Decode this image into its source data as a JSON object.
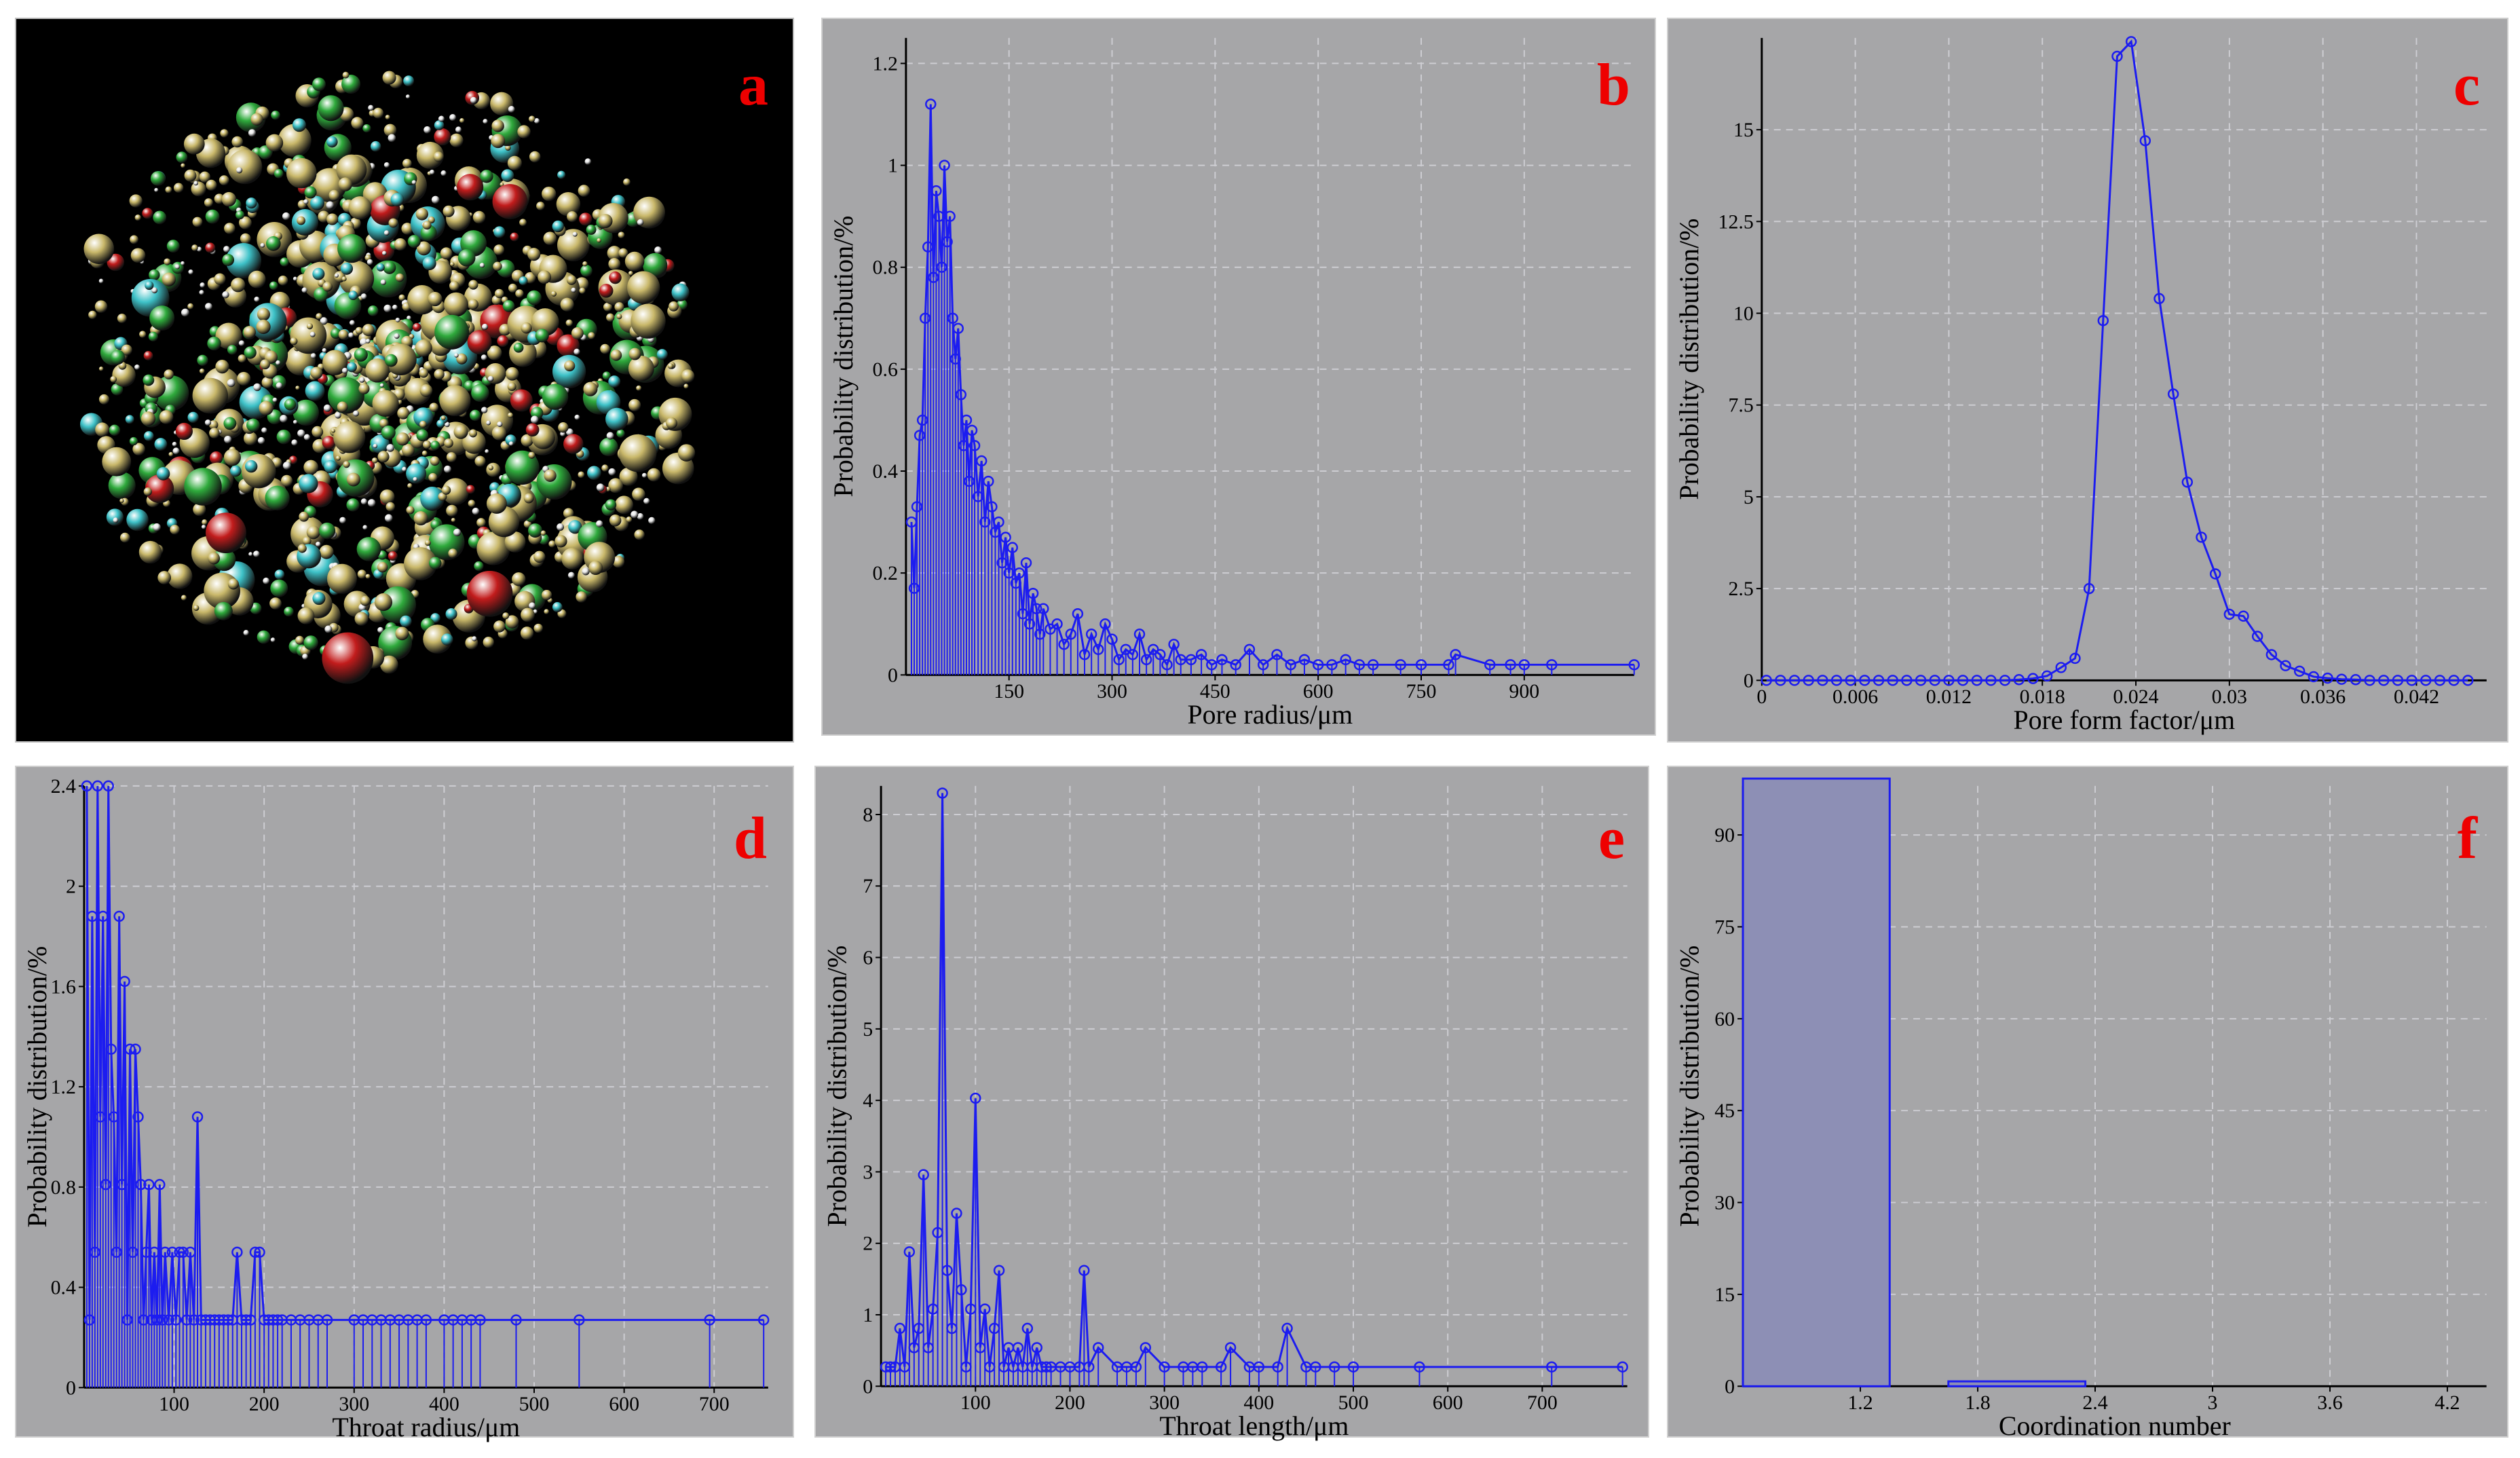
{
  "colors": {
    "line": "#1c1cf0",
    "panel_bg": "#a6a6a8",
    "grid": "#cdcdd2",
    "letter": "#ee0000",
    "bar_fill": "#8d8fb5"
  },
  "panels": {
    "a": {
      "letter": "a",
      "description_colors": [
        "#c9b86a",
        "#2faa3c",
        "#3ec2c8",
        "#c21c1c",
        "#e8e8e8"
      ]
    },
    "b": {
      "letter": "b"
    },
    "c": {
      "letter": "c"
    },
    "d": {
      "letter": "d"
    },
    "e": {
      "letter": "e"
    },
    "f": {
      "letter": "f"
    }
  },
  "chart_data": [
    {
      "id": "b",
      "type": "line",
      "xlabel": "Pore radius/μm",
      "ylabel": "Probability distribution/%",
      "xlim": [
        0,
        1060
      ],
      "ylim": [
        0,
        1.25
      ],
      "xticks": [
        150,
        300,
        450,
        600,
        750,
        900
      ],
      "yticks": [
        0,
        0.2,
        0.4,
        0.6,
        0.8,
        1,
        1.2
      ],
      "ytick_labels": [
        "0",
        "0.2",
        "0.4",
        "0.6",
        "0.8",
        "1",
        "1.2"
      ],
      "x": [
        8,
        12,
        16,
        20,
        24,
        28,
        32,
        36,
        40,
        44,
        48,
        52,
        56,
        60,
        64,
        68,
        72,
        76,
        80,
        84,
        88,
        92,
        96,
        100,
        105,
        110,
        115,
        120,
        125,
        130,
        135,
        140,
        145,
        150,
        155,
        160,
        165,
        170,
        175,
        180,
        185,
        190,
        195,
        200,
        210,
        220,
        230,
        240,
        250,
        260,
        270,
        280,
        290,
        300,
        310,
        320,
        330,
        340,
        350,
        360,
        370,
        380,
        390,
        400,
        415,
        430,
        445,
        460,
        480,
        500,
        520,
        540,
        560,
        580,
        600,
        620,
        640,
        660,
        680,
        720,
        750,
        790,
        800,
        850,
        880,
        900,
        940,
        1060
      ],
      "y": [
        0.3,
        0.17,
        0.33,
        0.47,
        0.5,
        0.7,
        0.84,
        1.12,
        0.78,
        0.95,
        0.9,
        0.8,
        1.0,
        0.85,
        0.9,
        0.7,
        0.62,
        0.68,
        0.55,
        0.45,
        0.5,
        0.38,
        0.48,
        0.45,
        0.35,
        0.42,
        0.3,
        0.38,
        0.33,
        0.28,
        0.3,
        0.22,
        0.27,
        0.2,
        0.25,
        0.18,
        0.2,
        0.12,
        0.22,
        0.1,
        0.16,
        0.13,
        0.08,
        0.13,
        0.09,
        0.1,
        0.06,
        0.08,
        0.12,
        0.04,
        0.08,
        0.05,
        0.1,
        0.07,
        0.03,
        0.05,
        0.04,
        0.08,
        0.03,
        0.05,
        0.04,
        0.02,
        0.06,
        0.03,
        0.03,
        0.04,
        0.02,
        0.03,
        0.02,
        0.05,
        0.02,
        0.04,
        0.02,
        0.03,
        0.02,
        0.02,
        0.03,
        0.02,
        0.02,
        0.02,
        0.02,
        0.02,
        0.04,
        0.02,
        0.02,
        0.02,
        0.02,
        0.02
      ]
    },
    {
      "id": "c",
      "type": "line",
      "xlabel": "Pore form factor/μm",
      "ylabel": "Probability distribution/%",
      "xlim": [
        0,
        0.0465
      ],
      "ylim": [
        0,
        17.5
      ],
      "xticks": [
        0,
        0.006,
        0.012,
        0.018,
        0.024,
        0.03,
        0.036,
        0.042
      ],
      "xtick_labels": [
        "0",
        "0.006",
        "0.012",
        "0.018",
        "0.024",
        "0.03",
        "0.036",
        "0.042"
      ],
      "yticks": [
        0,
        2.5,
        5,
        7.5,
        10,
        12.5,
        15
      ],
      "ytick_labels": [
        "0",
        "2.5",
        "5",
        "7.5",
        "10",
        "12.5",
        "15"
      ],
      "x": [
        0.0003,
        0.0012,
        0.0021,
        0.003,
        0.0039,
        0.0048,
        0.0057,
        0.0066,
        0.0075,
        0.0084,
        0.0093,
        0.0102,
        0.0111,
        0.012,
        0.0129,
        0.0138,
        0.0147,
        0.0156,
        0.0165,
        0.0174,
        0.0183,
        0.0192,
        0.0201,
        0.021,
        0.0219,
        0.0228,
        0.0237,
        0.0246,
        0.0255,
        0.0264,
        0.0273,
        0.0282,
        0.0291,
        0.03,
        0.0309,
        0.0318,
        0.0327,
        0.0336,
        0.0345,
        0.0354,
        0.0363,
        0.0372,
        0.0381,
        0.039,
        0.0399,
        0.0408,
        0.0417,
        0.0426,
        0.0435,
        0.0444,
        0.0453
      ],
      "y": [
        0,
        0,
        0,
        0,
        0,
        0,
        0,
        0,
        0,
        0,
        0,
        0,
        0,
        0,
        0,
        0,
        0,
        0,
        0.02,
        0.05,
        0.12,
        0.35,
        0.6,
        2.5,
        9.8,
        17,
        17.4,
        14.7,
        10.4,
        7.8,
        5.4,
        3.9,
        2.9,
        1.8,
        1.75,
        1.2,
        0.7,
        0.4,
        0.25,
        0.1,
        0.06,
        0.03,
        0.02,
        0,
        0,
        0,
        0,
        0,
        0,
        0,
        0
      ]
    },
    {
      "id": "d",
      "type": "line",
      "xlabel": "Throat radius/μm",
      "ylabel": "Probability distribution/%",
      "xlim": [
        0,
        760
      ],
      "ylim": [
        0,
        2.4
      ],
      "xticks": [
        100,
        200,
        300,
        400,
        500,
        600,
        700
      ],
      "yticks": [
        0,
        0.4,
        0.8,
        1.2,
        1.6,
        2,
        2.4
      ],
      "ytick_labels": [
        "0",
        "0.4",
        "0.8",
        "1.2",
        "1.6",
        "2",
        "2.4"
      ],
      "x": [
        3,
        6,
        9,
        12,
        15,
        18,
        21,
        24,
        27,
        30,
        33,
        36,
        39,
        42,
        45,
        48,
        51,
        54,
        57,
        60,
        63,
        66,
        69,
        72,
        75,
        78,
        81,
        84,
        87,
        90,
        94,
        98,
        102,
        106,
        110,
        114,
        118,
        122,
        126,
        130,
        135,
        140,
        145,
        150,
        155,
        160,
        165,
        170,
        175,
        180,
        185,
        190,
        195,
        200,
        205,
        210,
        215,
        220,
        230,
        240,
        250,
        260,
        270,
        300,
        310,
        320,
        330,
        340,
        350,
        360,
        370,
        380,
        400,
        410,
        420,
        430,
        440,
        480,
        550,
        695,
        755
      ],
      "y": [
        2.4,
        0.27,
        1.88,
        0.54,
        2.4,
        1.08,
        1.88,
        0.81,
        2.4,
        1.35,
        1.08,
        0.54,
        1.88,
        0.81,
        1.62,
        0.27,
        1.35,
        0.54,
        1.35,
        1.08,
        0.81,
        0.27,
        0.54,
        0.81,
        0.27,
        0.54,
        0.27,
        0.81,
        0.27,
        0.54,
        0.27,
        0.54,
        0.27,
        0.54,
        0.54,
        0.27,
        0.54,
        0.27,
        1.08,
        0.27,
        0.27,
        0.27,
        0.27,
        0.27,
        0.27,
        0.27,
        0.27,
        0.54,
        0.27,
        0.27,
        0.27,
        0.54,
        0.54,
        0.27,
        0.27,
        0.27,
        0.27,
        0.27,
        0.27,
        0.27,
        0.27,
        0.27,
        0.27,
        0.27,
        0.27,
        0.27,
        0.27,
        0.27,
        0.27,
        0.27,
        0.27,
        0.27,
        0.27,
        0.27,
        0.27,
        0.27,
        0.27,
        0.27,
        0.27,
        0.27,
        0.27
      ]
    },
    {
      "id": "e",
      "type": "line",
      "xlabel": "Throat length/μm",
      "ylabel": "Probability distribution/%",
      "xlim": [
        0,
        790
      ],
      "ylim": [
        0,
        8.4
      ],
      "xticks": [
        100,
        200,
        300,
        400,
        500,
        600,
        700
      ],
      "yticks": [
        0,
        1,
        2,
        3,
        4,
        5,
        6,
        7,
        8
      ],
      "ytick_labels": [
        "0",
        "1",
        "2",
        "3",
        "4",
        "5",
        "6",
        "7",
        "8"
      ],
      "x": [
        5,
        10,
        15,
        20,
        25,
        30,
        35,
        40,
        45,
        50,
        55,
        60,
        65,
        70,
        75,
        80,
        85,
        90,
        95,
        100,
        105,
        110,
        115,
        120,
        125,
        130,
        135,
        140,
        145,
        150,
        155,
        160,
        165,
        170,
        175,
        180,
        190,
        200,
        210,
        215,
        220,
        230,
        250,
        260,
        270,
        280,
        300,
        320,
        330,
        340,
        360,
        370,
        390,
        400,
        420,
        430,
        450,
        460,
        480,
        500,
        570,
        710,
        785
      ],
      "y": [
        0.27,
        0.27,
        0.27,
        0.81,
        0.27,
        1.88,
        0.54,
        0.81,
        2.96,
        0.54,
        1.08,
        2.15,
        8.3,
        1.62,
        0.81,
        2.42,
        1.35,
        0.27,
        1.08,
        4.03,
        0.54,
        1.08,
        0.27,
        0.81,
        1.62,
        0.27,
        0.54,
        0.27,
        0.54,
        0.27,
        0.81,
        0.27,
        0.54,
        0.27,
        0.27,
        0.27,
        0.27,
        0.27,
        0.27,
        1.62,
        0.27,
        0.54,
        0.27,
        0.27,
        0.27,
        0.54,
        0.27,
        0.27,
        0.27,
        0.27,
        0.27,
        0.54,
        0.27,
        0.27,
        0.27,
        0.81,
        0.27,
        0.27,
        0.27,
        0.27,
        0.27,
        0.27,
        0.27
      ]
    },
    {
      "id": "f",
      "type": "bar",
      "xlabel": "Coordination number",
      "ylabel": "Probability distribution/%",
      "xlim": [
        0.6,
        4.4
      ],
      "ylim": [
        0,
        98
      ],
      "xticks": [
        1.2,
        1.8,
        2.4,
        3,
        3.6,
        4.2
      ],
      "xtick_labels": [
        "1.2",
        "1.8",
        "2.4",
        "3",
        "3.6",
        "4.2"
      ],
      "yticks": [
        0,
        15,
        30,
        45,
        60,
        75,
        90
      ],
      "ytick_labels": [
        "0",
        "15",
        "30",
        "45",
        "60",
        "75",
        "90"
      ],
      "bars": [
        {
          "x0": 0.6,
          "x1": 1.35,
          "value": 99.2
        },
        {
          "x0": 1.65,
          "x1": 2.35,
          "value": 0.8
        }
      ]
    }
  ]
}
